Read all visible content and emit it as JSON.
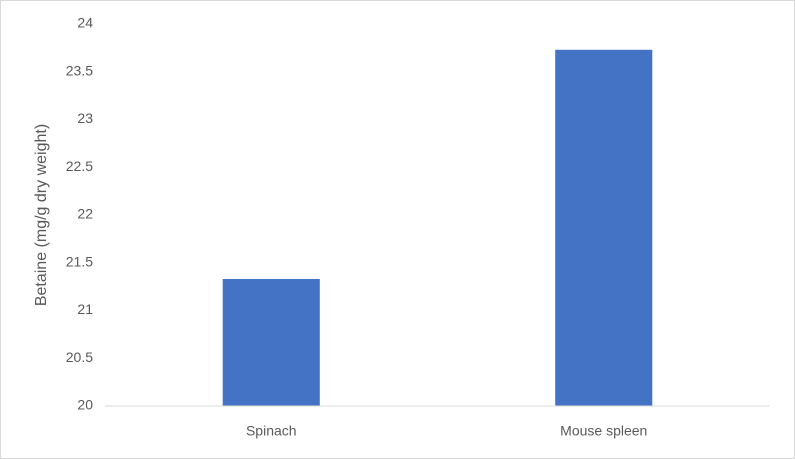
{
  "chart_data": {
    "type": "bar",
    "y_label": "Betaine (mg/g dry weight)",
    "categories": [
      "Spinach",
      "Mouse spleen"
    ],
    "values": [
      21.33,
      23.73
    ],
    "color": "#4472c4",
    "ylim": [
      20,
      24
    ],
    "yticks": [
      20,
      20.5,
      21,
      21.5,
      22,
      22.5,
      23,
      23.5,
      24
    ],
    "grid": false
  }
}
